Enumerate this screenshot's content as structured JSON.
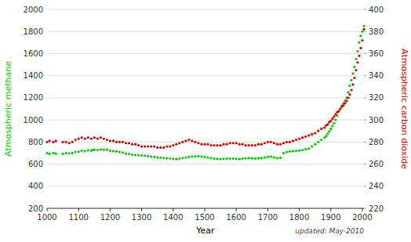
{
  "chart_data": {
    "type": "scatter",
    "y_label": "Atmospheric methane",
    "y2_label": "Atmospheric carbon dioxide",
    "x_label": "Year",
    "annotation": "updated: May-2010",
    "grid": true,
    "xlim": [
      1000,
      2005
    ],
    "xticks": [
      1000,
      1100,
      1200,
      1300,
      1400,
      1500,
      1600,
      1700,
      1800,
      1900,
      2000
    ],
    "ylim": [
      200,
      2000
    ],
    "yticks": [
      200,
      400,
      600,
      800,
      1000,
      1200,
      1400,
      1600,
      1800,
      2000
    ],
    "y2lim": [
      220,
      400
    ],
    "y2ticks": [
      220,
      240,
      260,
      280,
      300,
      320,
      340,
      360,
      380,
      400
    ],
    "series": [
      {
        "color": "#00cc00",
        "axis": "y",
        "x": [
          1000,
          1008,
          1020,
          1028,
          1050,
          1060,
          1070,
          1080,
          1090,
          1100,
          1110,
          1120,
          1130,
          1140,
          1145,
          1150,
          1160,
          1170,
          1180,
          1190,
          1200,
          1210,
          1220,
          1230,
          1240,
          1250,
          1260,
          1270,
          1280,
          1290,
          1300,
          1310,
          1320,
          1330,
          1340,
          1350,
          1360,
          1370,
          1380,
          1390,
          1400,
          1410,
          1420,
          1430,
          1440,
          1450,
          1460,
          1470,
          1480,
          1490,
          1500,
          1510,
          1520,
          1530,
          1540,
          1550,
          1560,
          1570,
          1580,
          1590,
          1600,
          1610,
          1620,
          1630,
          1640,
          1650,
          1660,
          1670,
          1680,
          1690,
          1700,
          1710,
          1720,
          1730,
          1740,
          1750,
          1760,
          1770,
          1780,
          1790,
          1800,
          1810,
          1820,
          1830,
          1840,
          1850,
          1860,
          1870,
          1880,
          1885,
          1890,
          1895,
          1900,
          1905,
          1910,
          1915,
          1920,
          1925,
          1930,
          1935,
          1940,
          1945,
          1950,
          1955,
          1960,
          1965,
          1970,
          1975,
          1980,
          1985,
          1990,
          1995,
          2000,
          2005
        ],
        "values": [
          700,
          693,
          700,
          695,
          693,
          700,
          698,
          700,
          710,
          712,
          720,
          718,
          725,
          722,
          728,
          730,
          728,
          733,
          730,
          730,
          720,
          718,
          715,
          710,
          705,
          695,
          692,
          685,
          683,
          680,
          678,
          675,
          672,
          668,
          665,
          660,
          658,
          655,
          653,
          650,
          648,
          645,
          650,
          655,
          660,
          665,
          668,
          670,
          672,
          668,
          665,
          660,
          655,
          650,
          648,
          645,
          648,
          650,
          650,
          650,
          648,
          645,
          650,
          652,
          655,
          653,
          650,
          652,
          655,
          660,
          665,
          668,
          660,
          655,
          658,
          700,
          710,
          715,
          718,
          720,
          722,
          728,
          735,
          740,
          760,
          780,
          800,
          820,
          840,
          855,
          875,
          895,
          920,
          945,
          970,
          1000,
          1040,
          1075,
          1100,
          1130,
          1150,
          1175,
          1200,
          1250,
          1310,
          1360,
          1420,
          1480,
          1550,
          1620,
          1700,
          1760,
          1800,
          1850
        ]
      },
      {
        "color": "#dd0000",
        "axis": "y2",
        "x": [
          1000,
          1008,
          1020,
          1028,
          1050,
          1060,
          1070,
          1080,
          1090,
          1100,
          1110,
          1120,
          1130,
          1140,
          1150,
          1160,
          1170,
          1180,
          1190,
          1200,
          1210,
          1220,
          1230,
          1240,
          1250,
          1260,
          1270,
          1280,
          1290,
          1300,
          1310,
          1320,
          1330,
          1340,
          1350,
          1360,
          1370,
          1380,
          1390,
          1400,
          1410,
          1420,
          1430,
          1440,
          1450,
          1460,
          1470,
          1480,
          1490,
          1500,
          1510,
          1520,
          1530,
          1540,
          1550,
          1560,
          1570,
          1580,
          1590,
          1600,
          1610,
          1620,
          1630,
          1640,
          1650,
          1660,
          1670,
          1680,
          1690,
          1700,
          1710,
          1720,
          1730,
          1740,
          1750,
          1760,
          1770,
          1780,
          1790,
          1800,
          1810,
          1820,
          1830,
          1840,
          1850,
          1860,
          1870,
          1880,
          1885,
          1890,
          1895,
          1900,
          1905,
          1910,
          1915,
          1920,
          1925,
          1930,
          1935,
          1940,
          1945,
          1950,
          1955,
          1960,
          1965,
          1970,
          1975,
          1980,
          1985,
          1990,
          1995,
          2000,
          2005
        ],
        "values": [
          280,
          281,
          280,
          281,
          280,
          280,
          279,
          280,
          282,
          283,
          284,
          283,
          284,
          283,
          284,
          283,
          284,
          283,
          282,
          281,
          281,
          280,
          280,
          280,
          279,
          279,
          278,
          278,
          277,
          276,
          276,
          276,
          276,
          276,
          275,
          275,
          275,
          276,
          276,
          277,
          278,
          279,
          280,
          281,
          282,
          281,
          280,
          279,
          278,
          278,
          278,
          277,
          277,
          277,
          277,
          278,
          278,
          279,
          279,
          279,
          278,
          278,
          277,
          277,
          277,
          277,
          278,
          278,
          279,
          280,
          280,
          279,
          278,
          278,
          279,
          280,
          280,
          281,
          282,
          283,
          284,
          285,
          286,
          287,
          288,
          290,
          292,
          293,
          295,
          296,
          298,
          299,
          301,
          303,
          305,
          307,
          308,
          310,
          312,
          313,
          315,
          317,
          320,
          323,
          327,
          332,
          338,
          345,
          352,
          358,
          365,
          372,
          382
        ]
      }
    ]
  }
}
